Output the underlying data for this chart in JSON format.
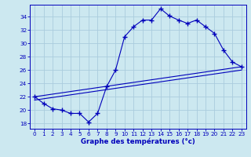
{
  "xlabel": "Graphe des températures (°c)",
  "bg_color": "#cce8f0",
  "line_color": "#0000bb",
  "grid_color": "#aaccdd",
  "xlim": [
    -0.5,
    23.5
  ],
  "ylim": [
    17.2,
    35.8
  ],
  "yticks": [
    18,
    20,
    22,
    24,
    26,
    28,
    30,
    32,
    34
  ],
  "xticks": [
    0,
    1,
    2,
    3,
    4,
    5,
    6,
    7,
    8,
    9,
    10,
    11,
    12,
    13,
    14,
    15,
    16,
    17,
    18,
    19,
    20,
    21,
    22,
    23
  ],
  "hours": [
    0,
    1,
    2,
    3,
    4,
    5,
    6,
    7,
    8,
    9,
    10,
    11,
    12,
    13,
    14,
    15,
    16,
    17,
    18,
    19,
    20,
    21,
    22,
    23
  ],
  "temp_main": [
    22,
    21,
    20.2,
    20,
    19.5,
    19.5,
    18.2,
    19.5,
    23.5,
    26,
    31,
    32.5,
    33.5,
    33.5,
    35.2,
    34.1,
    33.5,
    33.0,
    33.5,
    32.5,
    31.5,
    29.0,
    27.2,
    26.5
  ],
  "trend1_x": [
    0,
    23
  ],
  "trend1_y": [
    22.0,
    26.5
  ],
  "trend2_x": [
    0,
    23
  ],
  "trend2_y": [
    21.5,
    26.0
  ]
}
